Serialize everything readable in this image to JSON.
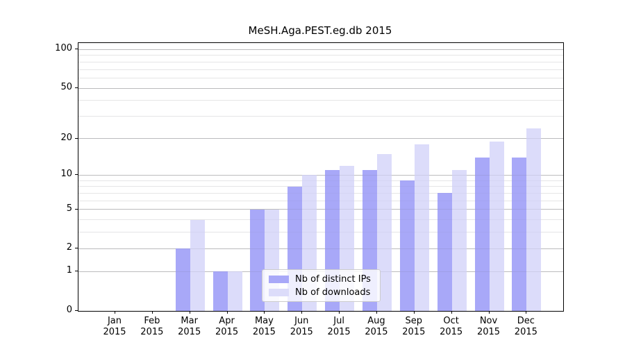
{
  "title": "MeSH.Aga.PEST.eg.db 2015",
  "y_axis": {
    "tick_labels": [
      "100",
      "50",
      "20",
      "10",
      "5",
      "2",
      "1",
      "0"
    ],
    "tick_values": [
      100,
      50,
      20,
      10,
      5,
      2,
      1,
      0
    ]
  },
  "x_axis": {
    "year_label": "2015"
  },
  "legend": {
    "items": [
      {
        "label": "Nb of distinct IPs",
        "color": "#a8a8f8"
      },
      {
        "label": "Nb of downloads",
        "color": "#dcdcfa"
      }
    ]
  },
  "chart_data": {
    "type": "bar",
    "title": "MeSH.Aga.PEST.eg.db 2015",
    "categories": [
      "Jan",
      "Feb",
      "Mar",
      "Apr",
      "May",
      "Jun",
      "Jul",
      "Aug",
      "Sep",
      "Oct",
      "Nov",
      "Dec"
    ],
    "year": "2015",
    "series": [
      {
        "name": "Nb of distinct IPs",
        "color": "#a8a8f8",
        "values": [
          0,
          0,
          2,
          1,
          5,
          8,
          11,
          11,
          9,
          7,
          14,
          14
        ]
      },
      {
        "name": "Nb of downloads",
        "color": "#dcdcfa",
        "values": [
          0,
          0,
          4,
          1,
          5,
          10,
          12,
          15,
          18,
          11,
          19,
          24
        ]
      }
    ],
    "xlabel": "",
    "ylabel": "",
    "yscale": "log1p",
    "ylim": [
      0,
      112
    ],
    "y_major_gridlines": [
      1,
      2,
      5,
      10,
      20,
      50,
      100
    ],
    "y_minor_gridlines": [
      3,
      4,
      6,
      7,
      8,
      9,
      30,
      40,
      60,
      70,
      80,
      90
    ],
    "grid": "horizontal",
    "legend_position": "bottom-center"
  }
}
